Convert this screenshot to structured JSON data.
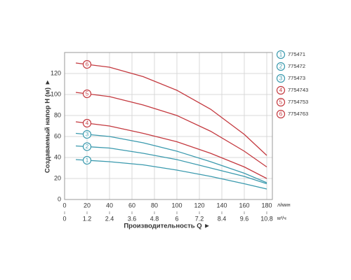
{
  "chart_data": {
    "type": "line",
    "ylabel": "Создаваемый напор H (м) ►",
    "xlabel": "Производительность Q ►",
    "x_unit": "л/мин",
    "x2_unit": "м³/ч",
    "x": [
      10,
      40,
      70,
      100,
      130,
      160,
      180
    ],
    "xlim": [
      0,
      185
    ],
    "xticks": [
      0,
      20,
      40,
      60,
      80,
      100,
      120,
      140,
      160,
      180
    ],
    "x2lim": [
      0,
      11.1
    ],
    "x2ticks": [
      0,
      1.2,
      2.4,
      3.6,
      4.8,
      6.0,
      7.2,
      8.4,
      9.6,
      10.8
    ],
    "ylim": [
      0,
      140
    ],
    "yticks": [
      0,
      20,
      40,
      60,
      80,
      100,
      120
    ],
    "grid": true,
    "series": [
      {
        "name": "775471",
        "label": "1",
        "color": "#3b9aae",
        "values": [
          38,
          36,
          33,
          28,
          22,
          15,
          10
        ]
      },
      {
        "name": "775472",
        "label": "2",
        "color": "#3b9aae",
        "values": [
          51,
          49,
          44,
          38,
          30,
          22,
          15
        ]
      },
      {
        "name": "775473",
        "label": "3",
        "color": "#3b9aae",
        "values": [
          63,
          60,
          54,
          46,
          36,
          25,
          16
        ]
      },
      {
        "name": "7754743",
        "label": "4",
        "color": "#c4393f",
        "values": [
          74,
          70,
          63,
          55,
          44,
          31,
          20
        ]
      },
      {
        "name": "7754753",
        "label": "5",
        "color": "#c4393f",
        "values": [
          102,
          98,
          90,
          80,
          65,
          46,
          31
        ]
      },
      {
        "name": "7754763",
        "label": "6",
        "color": "#c4393f",
        "values": [
          130,
          126,
          117,
          104,
          86,
          62,
          42
        ]
      }
    ]
  }
}
